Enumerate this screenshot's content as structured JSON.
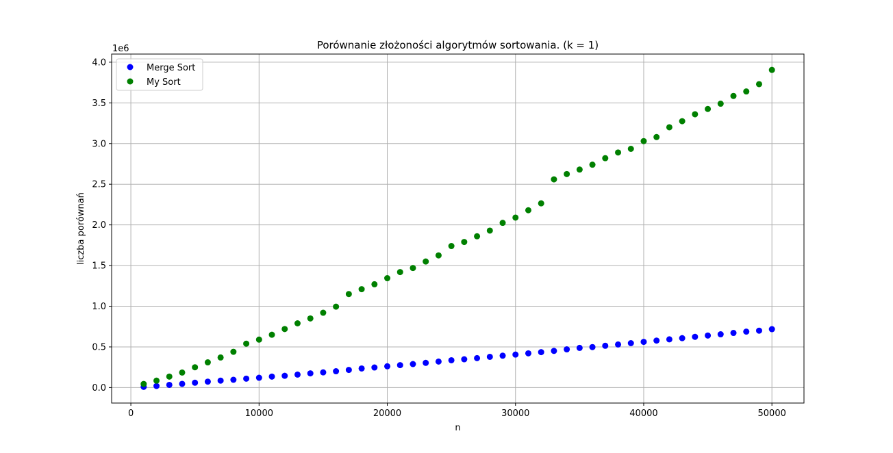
{
  "chart_data": {
    "type": "scatter",
    "title": "Porównanie złożoności algorytmów sortowania. (k = 1)",
    "xlabel": "n",
    "ylabel": "liczba porównań",
    "y_offset_label": "1e6",
    "y_scale": 1000000,
    "xlim": [
      -1500,
      52500
    ],
    "ylim": [
      -190000,
      4100000
    ],
    "x_ticks": [
      0,
      10000,
      20000,
      30000,
      40000,
      50000
    ],
    "x_tick_labels": [
      "0",
      "10000",
      "20000",
      "30000",
      "40000",
      "50000"
    ],
    "y_ticks": [
      0,
      500000,
      1000000,
      1500000,
      2000000,
      2500000,
      3000000,
      3500000,
      4000000
    ],
    "y_tick_labels": [
      "0.0",
      "0.5",
      "1.0",
      "1.5",
      "2.0",
      "2.5",
      "3.0",
      "3.5",
      "4.0"
    ],
    "grid": true,
    "legend_position": "top-left",
    "x": [
      1000,
      2000,
      3000,
      4000,
      5000,
      6000,
      7000,
      8000,
      9000,
      10000,
      11000,
      12000,
      13000,
      14000,
      15000,
      16000,
      17000,
      18000,
      19000,
      20000,
      21000,
      22000,
      23000,
      24000,
      25000,
      26000,
      27000,
      28000,
      29000,
      30000,
      31000,
      32000,
      33000,
      34000,
      35000,
      36000,
      37000,
      38000,
      39000,
      40000,
      41000,
      42000,
      43000,
      44000,
      45000,
      46000,
      47000,
      48000,
      49000,
      50000
    ],
    "series": [
      {
        "name": "Merge Sort",
        "color": "#0000ff",
        "values": [
          9000,
          20000,
          33000,
          46000,
          60000,
          73000,
          86000,
          96000,
          110000,
          121000,
          135000,
          145000,
          160000,
          175000,
          187000,
          201000,
          217000,
          235000,
          247000,
          262000,
          276000,
          289000,
          304000,
          320000,
          336000,
          348000,
          362000,
          378000,
          392000,
          406000,
          421000,
          436000,
          451000,
          470000,
          488000,
          498000,
          514000,
          530000,
          546000,
          562000,
          578000,
          593000,
          608000,
          624000,
          640000,
          655000,
          672000,
          688000,
          700000,
          718000
        ]
      },
      {
        "name": "My Sort",
        "color": "#008000",
        "values": [
          45000,
          85000,
          135000,
          185000,
          250000,
          310000,
          370000,
          440000,
          540000,
          590000,
          650000,
          720000,
          790000,
          850000,
          920000,
          995000,
          1150000,
          1210000,
          1270000,
          1345000,
          1420000,
          1470000,
          1550000,
          1625000,
          1740000,
          1790000,
          1860000,
          1930000,
          2025000,
          2090000,
          2180000,
          2265000,
          2560000,
          2625000,
          2680000,
          2740000,
          2820000,
          2890000,
          2935000,
          3030000,
          3080000,
          3200000,
          3275000,
          3360000,
          3425000,
          3490000,
          3585000,
          3640000,
          3730000,
          3905000
        ]
      }
    ]
  }
}
